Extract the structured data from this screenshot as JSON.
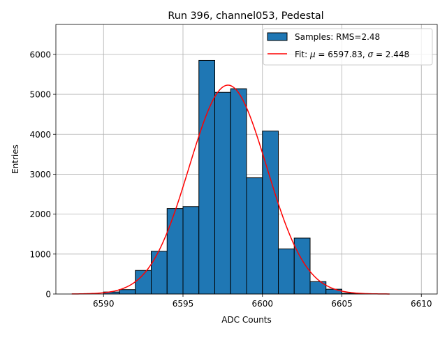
{
  "chart_data": {
    "type": "bar",
    "title": "Run 396, channel053, Pedestal",
    "xlabel": "ADC Counts",
    "ylabel": "Entries",
    "xlim": [
      6587,
      6611
    ],
    "ylim": [
      0,
      6750
    ],
    "xticks": [
      6590,
      6595,
      6600,
      6605,
      6610
    ],
    "yticks": [
      0,
      1000,
      2000,
      3000,
      4000,
      5000,
      6000
    ],
    "grid": true,
    "legend_position": "top-right",
    "bar_color": "#1f77b4",
    "fit_color": "#ff0000",
    "histogram": {
      "name": "Samples: RMS=2.48",
      "bin_width": 1,
      "bin_left_edges": [
        6590,
        6591,
        6592,
        6593,
        6594,
        6595,
        6596,
        6597,
        6598,
        6599,
        6600,
        6601,
        6602,
        6603,
        6604,
        6605,
        6606
      ],
      "values": [
        50,
        110,
        590,
        1070,
        2140,
        2190,
        5850,
        5050,
        5140,
        2910,
        4080,
        1130,
        1400,
        310,
        120,
        20,
        5
      ]
    },
    "fit": {
      "mu": 6597.83,
      "sigma": 2.448,
      "peak": 5230,
      "x_range": [
        6588,
        6608
      ]
    },
    "legend": {
      "samples_label": "Samples: RMS=2.48",
      "fit_prefix": "Fit: ",
      "mu_symbol": "μ",
      "mu_text": " = 6597.83, ",
      "sigma_symbol": "σ",
      "sigma_text": " = 2.448"
    }
  }
}
